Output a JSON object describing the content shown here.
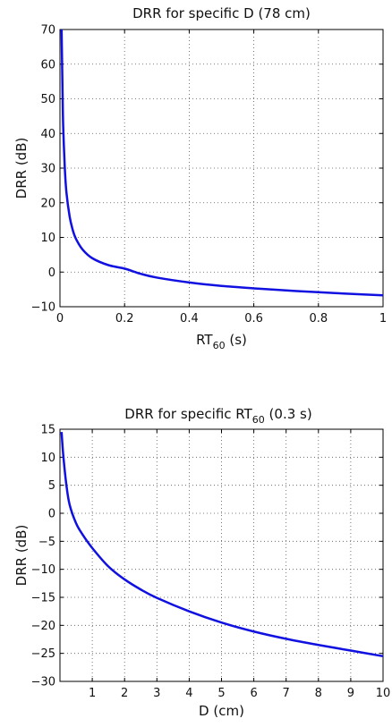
{
  "chart_data": [
    {
      "type": "line",
      "title": "DRR for specific D (78 cm)",
      "xlabel_main": "RT",
      "xlabel_sub": "60",
      "xlabel_unit": " (s)",
      "ylabel": "DRR (dB)",
      "xlim": [
        0,
        1
      ],
      "ylim": [
        -10,
        70
      ],
      "xticks": [
        0,
        0.2,
        0.4,
        0.6,
        0.8,
        1
      ],
      "xtick_labels": [
        "0",
        "0.2",
        "0.4",
        "0.6",
        "0.8",
        "1"
      ],
      "yticks": [
        -10,
        0,
        10,
        20,
        30,
        40,
        50,
        60,
        70
      ],
      "ytick_labels": [
        "−10",
        "0",
        "10",
        "20",
        "30",
        "40",
        "50",
        "60",
        "70"
      ],
      "grid": true,
      "series": [
        {
          "color": "#1010e0",
          "x": [
            0.005,
            0.008,
            0.01,
            0.015,
            0.02,
            0.03,
            0.04,
            0.05,
            0.07,
            0.1,
            0.15,
            0.2,
            0.25,
            0.3,
            0.4,
            0.5,
            0.6,
            0.7,
            0.8,
            0.9,
            1.0
          ],
          "y": [
            70,
            52,
            42,
            30,
            23,
            16,
            12,
            9.5,
            6.5,
            4,
            2,
            1,
            -0.5,
            -1.6,
            -3,
            -4,
            -4.7,
            -5.3,
            -5.8,
            -6.3,
            -6.7
          ]
        }
      ]
    },
    {
      "type": "line",
      "title_main": "DRR for specific RT",
      "title_sub": "60",
      "title_end": " (0.3 s)",
      "xlabel": "D (cm)",
      "ylabel": "DRR (dB)",
      "xlim": [
        0,
        10
      ],
      "ylim": [
        -30,
        15
      ],
      "xticks": [
        1,
        2,
        3,
        4,
        5,
        6,
        7,
        8,
        9,
        10
      ],
      "xtick_labels": [
        "1",
        "2",
        "3",
        "4",
        "5",
        "6",
        "7",
        "8",
        "9",
        "10"
      ],
      "yticks": [
        -30,
        -25,
        -20,
        -15,
        -10,
        -5,
        0,
        5,
        10,
        15
      ],
      "ytick_labels": [
        "−30",
        "−25",
        "−20",
        "−15",
        "−10",
        "−5",
        "0",
        "5",
        "10",
        "15"
      ],
      "grid": true,
      "series": [
        {
          "color": "#1010e0",
          "x": [
            0.05,
            0.1,
            0.2,
            0.3,
            0.5,
            0.7,
            1,
            1.5,
            2,
            2.5,
            3,
            4,
            5,
            6,
            7,
            8,
            9,
            10
          ],
          "y": [
            14.5,
            10.5,
            5,
            1.5,
            -1.8,
            -3.8,
            -6.2,
            -9.5,
            -11.8,
            -13.6,
            -15.1,
            -17.5,
            -19.5,
            -21.1,
            -22.4,
            -23.5,
            -24.5,
            -25.5
          ]
        }
      ]
    }
  ]
}
